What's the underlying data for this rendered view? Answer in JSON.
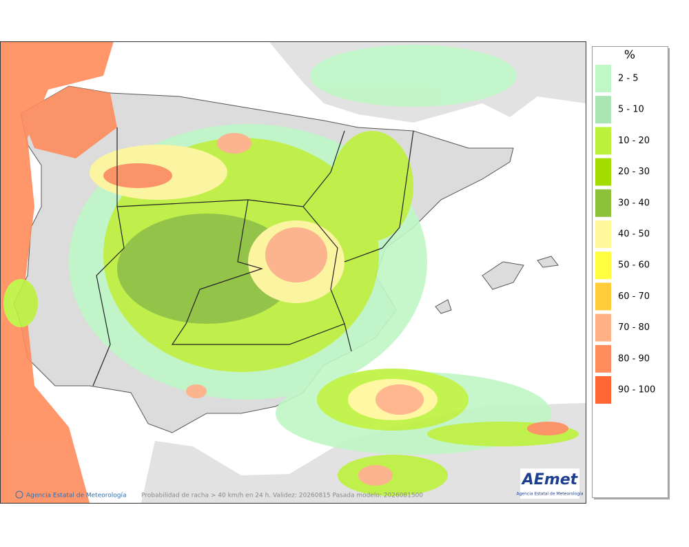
{
  "legend": {
    "title": "%",
    "items": [
      {
        "label": "2 - 5",
        "color": "#bff7c6"
      },
      {
        "label": "5 - 10",
        "color": "#a9e6b4"
      },
      {
        "label": "10 - 20",
        "color": "#bdf23c"
      },
      {
        "label": "20 - 30",
        "color": "#a4dd00"
      },
      {
        "label": "30 - 40",
        "color": "#8dc13a"
      },
      {
        "label": "40 - 50",
        "color": "#fff79a"
      },
      {
        "label": "50 - 60",
        "color": "#ffff40"
      },
      {
        "label": "60 - 70",
        "color": "#ffcc3a"
      },
      {
        "label": "70 - 80",
        "color": "#ffb085"
      },
      {
        "label": "80 - 90",
        "color": "#ff8c5c"
      },
      {
        "label": "90 - 100",
        "color": "#ff6633"
      }
    ]
  },
  "footer": {
    "credit": "Agencia Estatal de Meteorología",
    "caption": "Probabilidad de racha > 40 km/h en 24 h. Validez: 20260815 Pasada modelo: 2026081500"
  },
  "logo": {
    "text": "AEmet",
    "subtitle": "Agencia Estatal de Meteorología"
  }
}
